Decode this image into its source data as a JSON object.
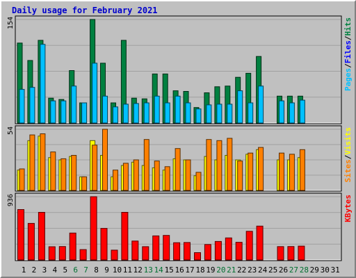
{
  "chart_data": {
    "type": "bar",
    "title": "Daily usage for February 2021",
    "colors": {
      "background": "#c0c0c0",
      "title": "#0000cc",
      "pages": "#00c0ff",
      "files": "#0000ff",
      "visits": "#ffff00",
      "sites": "#ff8000",
      "hits": "#008040",
      "kbytes": "#ff0000",
      "weekend_label": "#007030",
      "weekday_label": "#000000",
      "gridline": "#a0a0a0"
    },
    "x": [
      "1",
      "2",
      "3",
      "4",
      "5",
      "6",
      "7",
      "8",
      "9",
      "10",
      "11",
      "12",
      "13",
      "14",
      "15",
      "16",
      "17",
      "18",
      "19",
      "20",
      "21",
      "22",
      "23",
      "24",
      "25",
      "26",
      "27",
      "28",
      "29",
      "30",
      "31"
    ],
    "weekend_days": [
      "6",
      "7",
      "13",
      "14",
      "20",
      "21",
      "27",
      "28"
    ],
    "panels": [
      {
        "ymax_label": "154",
        "ymax": 154,
        "legend": [
          {
            "text": "Pages",
            "color": "#00c0ff"
          },
          {
            "text": "/",
            "color": "#000000"
          },
          {
            "text": "Files",
            "color": "#0000ff"
          },
          {
            "text": "/",
            "color": "#000000"
          },
          {
            "text": "Hits",
            "color": "#008040"
          }
        ],
        "series": [
          {
            "name": "Hits",
            "color": "#008040",
            "values": [
              119,
              93,
              123,
              37,
              35,
              78,
              30,
              154,
              89,
              30,
              123,
              37,
              36,
              73,
              73,
              48,
              47,
              23,
              45,
              54,
              55,
              68,
              74,
              99,
              0,
              40,
              40,
              40,
              0,
              0,
              0
            ]
          },
          {
            "name": "Pages",
            "color": "#00c0ff",
            "values": [
              50,
              53,
              117,
              33,
              33,
              55,
              30,
              89,
              40,
              24,
              28,
              29,
              30,
              40,
              30,
              40,
              30,
              21,
              27,
              28,
              28,
              48,
              30,
              55,
              0,
              33,
              30,
              34,
              0,
              0,
              0
            ]
          }
        ]
      },
      {
        "ymax_label": "54",
        "ymax": 54,
        "legend": [
          {
            "text": "Sites",
            "color": "#ff8000"
          },
          {
            "text": "/",
            "color": "#000000"
          },
          {
            "text": "Visits",
            "color": "#ffff00"
          }
        ],
        "series": [
          {
            "name": "Visits",
            "color": "#ffff00",
            "values": [
              18,
              44,
              48,
              29,
              27,
              30,
              12,
              44,
              31,
              12,
              22,
              25,
              22,
              20,
              18,
              28,
              27,
              13,
              30,
              27,
              31,
              27,
              32,
              36,
              0,
              27,
              27,
              29,
              0,
              0,
              0
            ]
          },
          {
            "name": "Sites",
            "color": "#ff8000",
            "values": [
              19,
              49,
              50,
              34,
              28,
              31,
              12,
              40,
              54,
              18,
              24,
              27,
              45,
              26,
              21,
              37,
              27,
              16,
              45,
              44,
              46,
              26,
              33,
              38,
              0,
              33,
              32,
              36,
              0,
              0,
              0
            ]
          }
        ]
      },
      {
        "ymax_label": "936",
        "ymax": 936,
        "legend": [
          {
            "text": "KBytes",
            "color": "#ff0000"
          }
        ],
        "series": [
          {
            "name": "KBytes",
            "color": "#ff0000",
            "values": [
              746,
              541,
              705,
              195,
              199,
              398,
              153,
              936,
              467,
              145,
              705,
              280,
              196,
              356,
              363,
              255,
              258,
              108,
              228,
              274,
              326,
              261,
              424,
              501,
              0,
              198,
              199,
              205,
              0,
              0,
              0
            ]
          }
        ]
      }
    ]
  }
}
